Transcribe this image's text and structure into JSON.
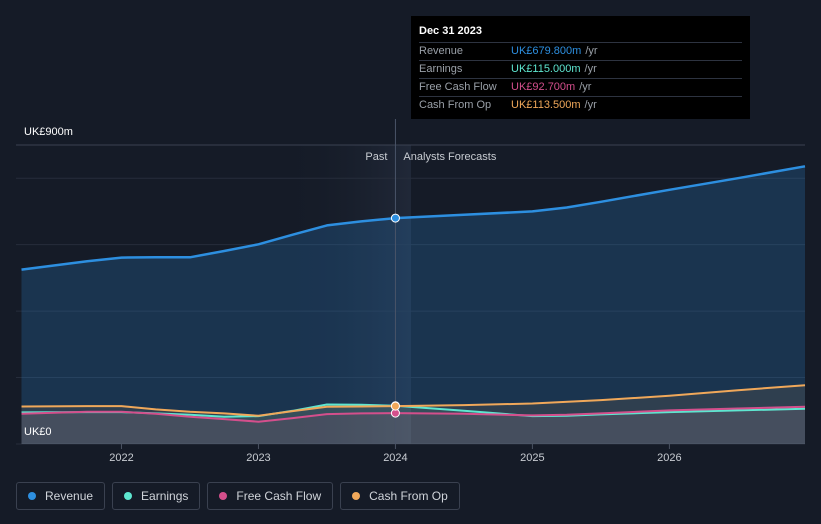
{
  "chart_data": {
    "type": "area",
    "title": "",
    "y_axis": {
      "top_label": "UK£900m",
      "bottom_label": "UK£0",
      "ylim": [
        0,
        900
      ]
    },
    "x_axis": {
      "ticks": [
        "2022",
        "2023",
        "2024",
        "2025",
        "2026"
      ],
      "xlim": [
        2021.23,
        2026.99
      ]
    },
    "regions": {
      "past_label": "Past",
      "forecast_label": "Analysts Forecasts",
      "divider_x": 2024.0
    },
    "series": [
      {
        "name": "Revenue",
        "color": "#2d8fe0",
        "points": [
          [
            2021.27,
            525
          ],
          [
            2021.75,
            550
          ],
          [
            2022.0,
            561
          ],
          [
            2022.25,
            562
          ],
          [
            2022.5,
            562
          ],
          [
            2022.75,
            581
          ],
          [
            2023.0,
            601
          ],
          [
            2023.25,
            630
          ],
          [
            2023.5,
            658
          ],
          [
            2023.75,
            670
          ],
          [
            2024.0,
            680
          ],
          [
            2024.5,
            690
          ],
          [
            2025.0,
            700
          ],
          [
            2025.25,
            712
          ],
          [
            2025.5,
            729
          ],
          [
            2026.0,
            765
          ],
          [
            2026.5,
            800
          ],
          [
            2026.99,
            836
          ]
        ]
      },
      {
        "name": "Earnings",
        "color": "#5ee6d0",
        "points": [
          [
            2021.27,
            95
          ],
          [
            2021.75,
            96
          ],
          [
            2022.0,
            96
          ],
          [
            2022.25,
            92
          ],
          [
            2022.5,
            88
          ],
          [
            2022.75,
            82
          ],
          [
            2023.0,
            84
          ],
          [
            2023.25,
            100
          ],
          [
            2023.5,
            119
          ],
          [
            2023.75,
            118
          ],
          [
            2024.0,
            115
          ],
          [
            2024.5,
            100
          ],
          [
            2025.0,
            84
          ],
          [
            2025.25,
            85
          ],
          [
            2025.5,
            89
          ],
          [
            2026.0,
            96
          ],
          [
            2026.5,
            101
          ],
          [
            2026.99,
            106
          ]
        ]
      },
      {
        "name": "Free Cash Flow",
        "color": "#d44f8c",
        "points": [
          [
            2021.27,
            91
          ],
          [
            2021.75,
            97
          ],
          [
            2022.0,
            97
          ],
          [
            2022.25,
            91
          ],
          [
            2022.5,
            82
          ],
          [
            2022.75,
            75
          ],
          [
            2023.0,
            67
          ],
          [
            2023.25,
            78
          ],
          [
            2023.5,
            90
          ],
          [
            2023.75,
            92
          ],
          [
            2024.0,
            93
          ],
          [
            2024.5,
            91
          ],
          [
            2025.0,
            86
          ],
          [
            2025.25,
            88
          ],
          [
            2025.5,
            92
          ],
          [
            2026.0,
            101
          ],
          [
            2026.5,
            107
          ],
          [
            2026.99,
            112
          ]
        ]
      },
      {
        "name": "Cash From Op",
        "color": "#f0a85a",
        "points": [
          [
            2021.27,
            113
          ],
          [
            2021.75,
            114
          ],
          [
            2022.0,
            114
          ],
          [
            2022.25,
            104
          ],
          [
            2022.5,
            97
          ],
          [
            2022.75,
            92
          ],
          [
            2023.0,
            85
          ],
          [
            2023.25,
            99
          ],
          [
            2023.5,
            112
          ],
          [
            2023.75,
            113
          ],
          [
            2024.0,
            114
          ],
          [
            2024.5,
            117
          ],
          [
            2025.0,
            122
          ],
          [
            2025.5,
            132
          ],
          [
            2026.0,
            145
          ],
          [
            2026.5,
            162
          ],
          [
            2026.99,
            177
          ]
        ]
      }
    ]
  },
  "tooltip": {
    "date": "Dec 31 2023",
    "rows": [
      {
        "label": "Revenue",
        "value": "UK£679.800m",
        "unit": "/yr",
        "color": "#2d8fe0"
      },
      {
        "label": "Earnings",
        "value": "UK£115.000m",
        "unit": "/yr",
        "color": "#5ee6d0"
      },
      {
        "label": "Free Cash Flow",
        "value": "UK£92.700m",
        "unit": "/yr",
        "color": "#d44f8c"
      },
      {
        "label": "Cash From Op",
        "value": "UK£113.500m",
        "unit": "/yr",
        "color": "#f0a85a"
      }
    ]
  },
  "legend": [
    {
      "label": "Revenue",
      "color": "#2d8fe0"
    },
    {
      "label": "Earnings",
      "color": "#5ee6d0"
    },
    {
      "label": "Free Cash Flow",
      "color": "#d44f8c"
    },
    {
      "label": "Cash From Op",
      "color": "#f0a85a"
    }
  ]
}
